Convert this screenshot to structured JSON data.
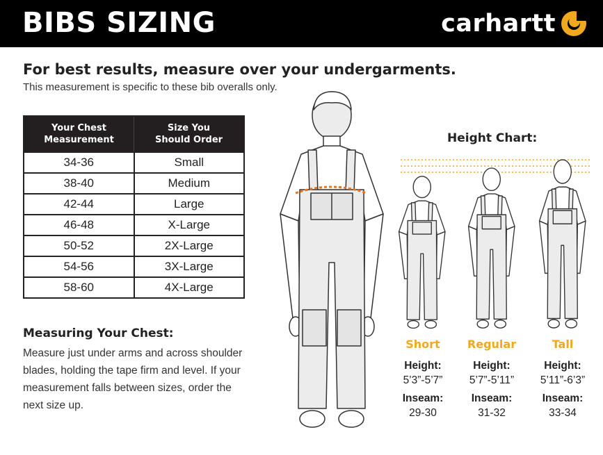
{
  "header": {
    "title": "BIBS SIZING",
    "brand": "carhartt"
  },
  "intro": {
    "headline": "For best results, measure over your undergarments.",
    "subline": "This measurement is specific to these bib overalls only."
  },
  "size_table": {
    "headers": [
      "Your Chest Measurement",
      "Size You Should Order"
    ],
    "rows": [
      [
        "34-36",
        "Small"
      ],
      [
        "38-40",
        "Medium"
      ],
      [
        "42-44",
        "Large"
      ],
      [
        "46-48",
        "X-Large"
      ],
      [
        "50-52",
        "2X-Large"
      ],
      [
        "54-56",
        "3X-Large"
      ],
      [
        "58-60",
        "4X-Large"
      ]
    ]
  },
  "measuring": {
    "title": "Measuring Your Chest:",
    "body": "Measure just under arms and across shoulder blades, holding the tape firm and level. If your measurement falls between sizes, order the next size up."
  },
  "height_chart": {
    "title": "Height Chart:",
    "accent_color": "#f0a91c",
    "columns": [
      {
        "name": "Short",
        "height_label": "Height:",
        "height": "5’3”-5’7”",
        "inseam_label": "Inseam:",
        "inseam": "29-30"
      },
      {
        "name": "Regular",
        "height_label": "Height:",
        "height": "5’7”-5’11”",
        "inseam_label": "Inseam:",
        "inseam": "31-32"
      },
      {
        "name": "Tall",
        "height_label": "Height:",
        "height": "5’11”-6’3”",
        "inseam_label": "Inseam:",
        "inseam": "33-34"
      }
    ]
  },
  "icons": {
    "logo": "carhartt-c-logo-icon",
    "big_figure": "overalls-figure-icon",
    "tape": "measuring-tape-icon"
  }
}
